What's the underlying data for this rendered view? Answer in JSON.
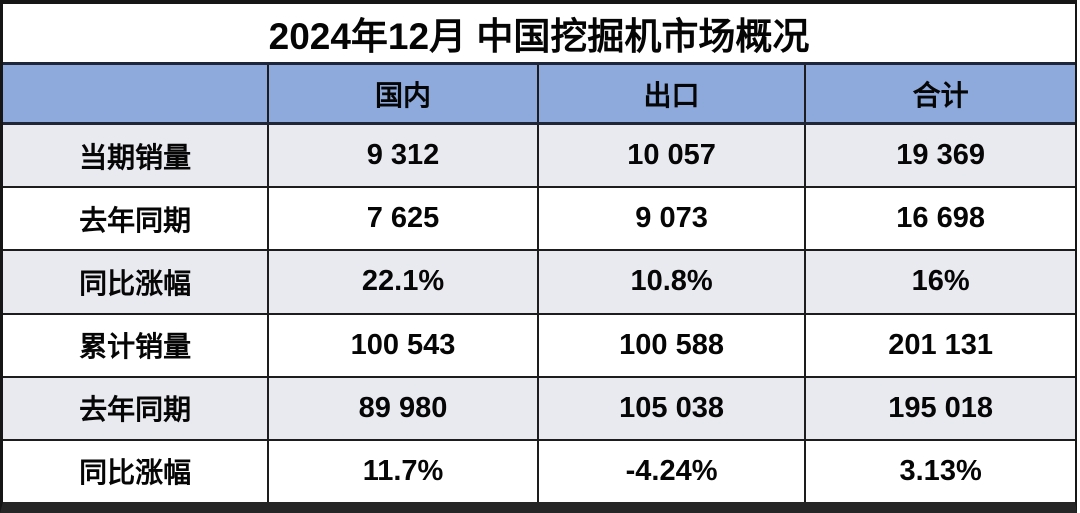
{
  "title": "2024年12月 中国挖掘机市场概况",
  "table": {
    "columns": [
      "",
      "国内",
      "出口",
      "合计"
    ],
    "rows": [
      {
        "label": "当期销量",
        "values": [
          "9 312",
          "10 057",
          "19 369"
        ]
      },
      {
        "label": "去年同期",
        "values": [
          "7 625",
          "9 073",
          "16 698"
        ]
      },
      {
        "label": "同比涨幅",
        "values": [
          "22.1%",
          "10.8%",
          "16%"
        ]
      },
      {
        "label": "累计销量",
        "values": [
          "100 543",
          "100 588",
          "201 131"
        ]
      },
      {
        "label": "去年同期",
        "values": [
          "89 980",
          "105 038",
          "195 018"
        ]
      },
      {
        "label": "同比涨幅",
        "values": [
          "11.7%",
          "-4.24%",
          "3.13%"
        ]
      }
    ]
  },
  "colors": {
    "header_bg": "#8EA9DB",
    "row_alt_bg": "#E9E9F0",
    "row_bg": "#FFFFFF",
    "border_dark": "#1D1D1D",
    "header_border": "#1F2638",
    "text": "#060606"
  },
  "chart_data": {
    "type": "table",
    "title": "2024年12月 中国挖掘机市场概况",
    "columns": [
      "",
      "国内",
      "出口",
      "合计"
    ],
    "rows": [
      [
        "当期销量",
        "9 312",
        "10 057",
        "19 369"
      ],
      [
        "去年同期",
        "7 625",
        "9 073",
        "16 698"
      ],
      [
        "同比涨幅",
        "22.1%",
        "10.8%",
        "16%"
      ],
      [
        "累计销量",
        "100 543",
        "100 588",
        "201 131"
      ],
      [
        "去年同期",
        "89 980",
        "105 038",
        "195 018"
      ],
      [
        "同比涨幅",
        "11.7%",
        "-4.24%",
        "3.13%"
      ]
    ]
  }
}
